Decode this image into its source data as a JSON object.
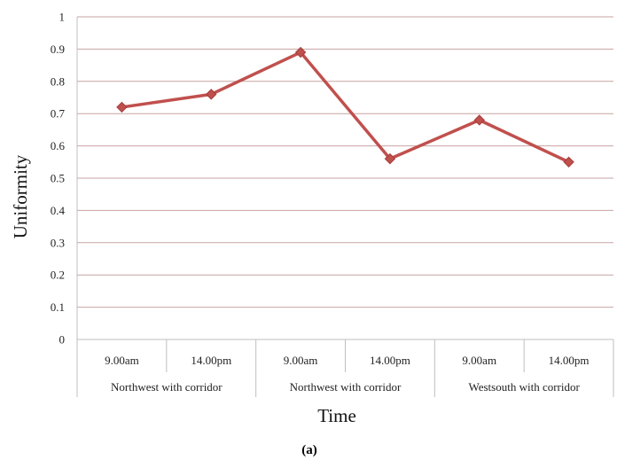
{
  "chart_data": {
    "type": "line",
    "x": [
      "9.00am",
      "14.00pm",
      "9.00am",
      "14.00pm",
      "9.00am",
      "14.00pm"
    ],
    "groups": [
      {
        "label": "Northwest with corridor",
        "span": [
          0,
          1
        ]
      },
      {
        "label": "Northwest  with corridor",
        "span": [
          2,
          3
        ]
      },
      {
        "label": "Westsouth with corridor",
        "span": [
          4,
          5
        ]
      }
    ],
    "series": [
      {
        "values": [
          0.72,
          0.76,
          0.89,
          0.56,
          0.68,
          0.55
        ]
      }
    ],
    "xlabel": "Time",
    "ylabel": "Uniformity",
    "ylim": [
      0,
      1
    ],
    "yticks": [
      "0",
      "0.1",
      "0.2",
      "0.3",
      "0.4",
      "0.5",
      "0.6",
      "0.7",
      "0.8",
      "0.9",
      "1"
    ],
    "grid": true,
    "legend": "none",
    "colors": {
      "line": "#c0504d",
      "marker": "#c0504d",
      "grid": "#c9a3a3",
      "axis": "#bfbfbf"
    }
  },
  "caption": "(a)"
}
